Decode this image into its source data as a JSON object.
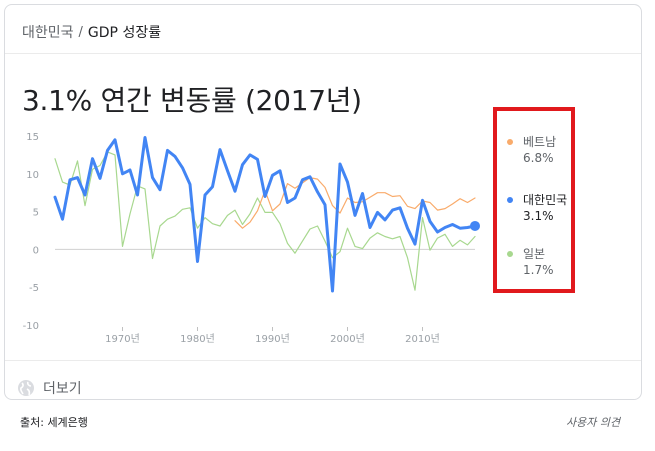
{
  "breadcrumb": {
    "country": "대한민국",
    "separator": "/",
    "topic": "GDP 성장률"
  },
  "headline": "3.1% 연간 변동률 (2017년)",
  "legend": [
    {
      "name": "베트남",
      "value": "6.8%",
      "color": "#f9ab6b"
    },
    {
      "name": "대한민국",
      "value": "3.1%",
      "color": "#4285f4"
    },
    {
      "name": "일본",
      "value": "1.7%",
      "color": "#a8d88f"
    }
  ],
  "more_label": "더보기",
  "footer": {
    "source": "출처: 세계은행",
    "feedback": "사용자 의견"
  },
  "chart_data": {
    "type": "line",
    "title": "",
    "xlabel": "",
    "ylabel": "",
    "ylim": [
      -10,
      15
    ],
    "y_ticks": [
      15,
      10,
      5,
      0,
      -5,
      -10
    ],
    "x_ticks": [
      {
        "year": 1970,
        "label": "1970년"
      },
      {
        "year": 1980,
        "label": "1980년"
      },
      {
        "year": 1990,
        "label": "1990년"
      },
      {
        "year": 2000,
        "label": "2000년"
      },
      {
        "year": 2010,
        "label": "2010년"
      }
    ],
    "grid": "horizontal zero line",
    "legend_position": "right",
    "series": [
      {
        "name": "대한민국",
        "color": "#4285f4",
        "x": [
          1961,
          1962,
          1963,
          1964,
          1965,
          1966,
          1967,
          1968,
          1969,
          1970,
          1971,
          1972,
          1973,
          1974,
          1975,
          1976,
          1977,
          1978,
          1979,
          1980,
          1981,
          1982,
          1983,
          1984,
          1985,
          1986,
          1987,
          1988,
          1989,
          1990,
          1991,
          1992,
          1993,
          1994,
          1995,
          1996,
          1997,
          1998,
          1999,
          2000,
          2001,
          2002,
          2003,
          2004,
          2005,
          2006,
          2007,
          2008,
          2009,
          2010,
          2011,
          2012,
          2013,
          2014,
          2015,
          2016,
          2017
        ],
        "values": [
          6.9,
          4.0,
          9.2,
          9.5,
          7.2,
          12.0,
          9.4,
          13.1,
          14.5,
          10.0,
          10.5,
          7.2,
          14.8,
          9.5,
          7.9,
          13.1,
          12.3,
          10.8,
          8.6,
          -1.6,
          7.2,
          8.3,
          13.2,
          10.4,
          7.7,
          11.2,
          12.5,
          11.9,
          7.0,
          9.8,
          10.4,
          6.2,
          6.8,
          9.2,
          9.6,
          7.6,
          5.9,
          -5.5,
          11.3,
          8.9,
          4.5,
          7.4,
          2.9,
          4.9,
          3.9,
          5.2,
          5.5,
          2.8,
          0.7,
          6.5,
          3.7,
          2.3,
          2.9,
          3.3,
          2.8,
          2.9,
          3.1
        ]
      },
      {
        "name": "베트남",
        "color": "#f9ab6b",
        "x": [
          1985,
          1986,
          1987,
          1988,
          1989,
          1990,
          1991,
          1992,
          1993,
          1994,
          1995,
          1996,
          1997,
          1998,
          1999,
          2000,
          2001,
          2002,
          2003,
          2004,
          2005,
          2006,
          2007,
          2008,
          2009,
          2010,
          2011,
          2012,
          2013,
          2014,
          2015,
          2016,
          2017
        ],
        "values": [
          3.8,
          2.8,
          3.6,
          5.1,
          7.8,
          5.1,
          6.0,
          8.7,
          8.1,
          8.8,
          9.5,
          9.3,
          8.2,
          5.8,
          4.8,
          6.8,
          6.2,
          6.3,
          6.9,
          7.5,
          7.5,
          7.0,
          7.1,
          5.7,
          5.4,
          6.4,
          6.2,
          5.2,
          5.4,
          6.0,
          6.7,
          6.2,
          6.8
        ]
      },
      {
        "name": "일본",
        "color": "#a8d88f",
        "x": [
          1961,
          1962,
          1963,
          1964,
          1965,
          1966,
          1967,
          1968,
          1969,
          1970,
          1971,
          1972,
          1973,
          1974,
          1975,
          1976,
          1977,
          1978,
          1979,
          1980,
          1981,
          1982,
          1983,
          1984,
          1985,
          1986,
          1987,
          1988,
          1989,
          1990,
          1991,
          1992,
          1993,
          1994,
          1995,
          1996,
          1997,
          1998,
          1999,
          2000,
          2001,
          2002,
          2003,
          2004,
          2005,
          2006,
          2007,
          2008,
          2009,
          2010,
          2011,
          2012,
          2013,
          2014,
          2015,
          2016,
          2017
        ],
        "values": [
          12.0,
          8.9,
          8.5,
          11.7,
          5.8,
          10.6,
          11.1,
          12.9,
          12.5,
          0.4,
          4.7,
          8.4,
          8.0,
          -1.2,
          3.1,
          4.0,
          4.4,
          5.3,
          5.5,
          2.8,
          4.2,
          3.4,
          3.1,
          4.5,
          5.2,
          3.3,
          4.7,
          6.8,
          4.9,
          4.9,
          3.4,
          0.8,
          -0.5,
          1.1,
          2.7,
          3.1,
          1.1,
          -1.1,
          -0.3,
          2.8,
          0.4,
          0.1,
          1.5,
          2.2,
          1.7,
          1.4,
          1.7,
          -1.1,
          -5.4,
          4.2,
          -0.1,
          1.5,
          2.0,
          0.4,
          1.2,
          0.6,
          1.7
        ]
      }
    ]
  }
}
